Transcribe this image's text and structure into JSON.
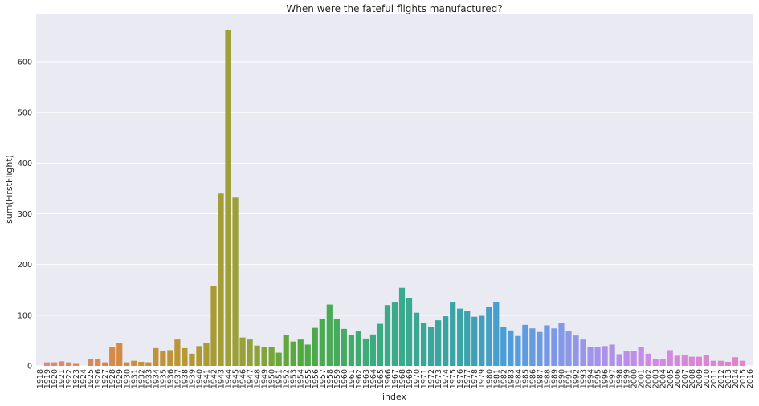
{
  "chart_data": {
    "type": "bar",
    "title": "When were the fateful flights manufactured?",
    "xlabel": "index",
    "ylabel": "sum(FirstFlight)",
    "ylim": [
      0,
      695
    ],
    "yticks": [
      0,
      100,
      200,
      300,
      400,
      500,
      600
    ],
    "grid": true,
    "categories": [
      "1918",
      "1919",
      "1920",
      "1921",
      "1922",
      "1923",
      "1924",
      "1925",
      "1926",
      "1927",
      "1928",
      "1929",
      "1930",
      "1931",
      "1932",
      "1933",
      "1934",
      "1935",
      "1936",
      "1937",
      "1938",
      "1939",
      "1940",
      "1941",
      "1942",
      "1943",
      "1944",
      "1945",
      "1946",
      "1947",
      "1948",
      "1949",
      "1950",
      "1951",
      "1952",
      "1953",
      "1954",
      "1955",
      "1956",
      "1957",
      "1958",
      "1959",
      "1960",
      "1961",
      "1962",
      "1963",
      "1964",
      "1965",
      "1966",
      "1967",
      "1968",
      "1969",
      "1970",
      "1971",
      "1972",
      "1973",
      "1974",
      "1975",
      "1976",
      "1977",
      "1978",
      "1979",
      "1980",
      "1981",
      "1982",
      "1983",
      "1984",
      "1985",
      "1986",
      "1987",
      "1988",
      "1989",
      "1990",
      "1991",
      "1992",
      "1993",
      "1994",
      "1995",
      "1996",
      "1997",
      "1998",
      "1999",
      "2000",
      "2001",
      "2002",
      "2003",
      "2004",
      "2005",
      "2006",
      "2007",
      "2008",
      "2009",
      "2010",
      "2011",
      "2012",
      "2013",
      "2014",
      "2015",
      "2016"
    ],
    "values": [
      0,
      7,
      7,
      9,
      7,
      4,
      0,
      13,
      13,
      7,
      37,
      45,
      7,
      10,
      8,
      7,
      35,
      30,
      31,
      52,
      35,
      24,
      39,
      45,
      157,
      340,
      663,
      332,
      56,
      52,
      40,
      38,
      37,
      26,
      61,
      48,
      52,
      42,
      75,
      92,
      121,
      93,
      73,
      61,
      68,
      54,
      62,
      83,
      120,
      125,
      154,
      133,
      105,
      84,
      76,
      90,
      98,
      125,
      113,
      109,
      97,
      99,
      117,
      125,
      77,
      70,
      59,
      81,
      74,
      67,
      80,
      74,
      85,
      68,
      60,
      52,
      38,
      37,
      39,
      42,
      23,
      30,
      30,
      37,
      24,
      13,
      13,
      31,
      20,
      22,
      18,
      18,
      22,
      10,
      10,
      8,
      17,
      10,
      0
    ]
  }
}
